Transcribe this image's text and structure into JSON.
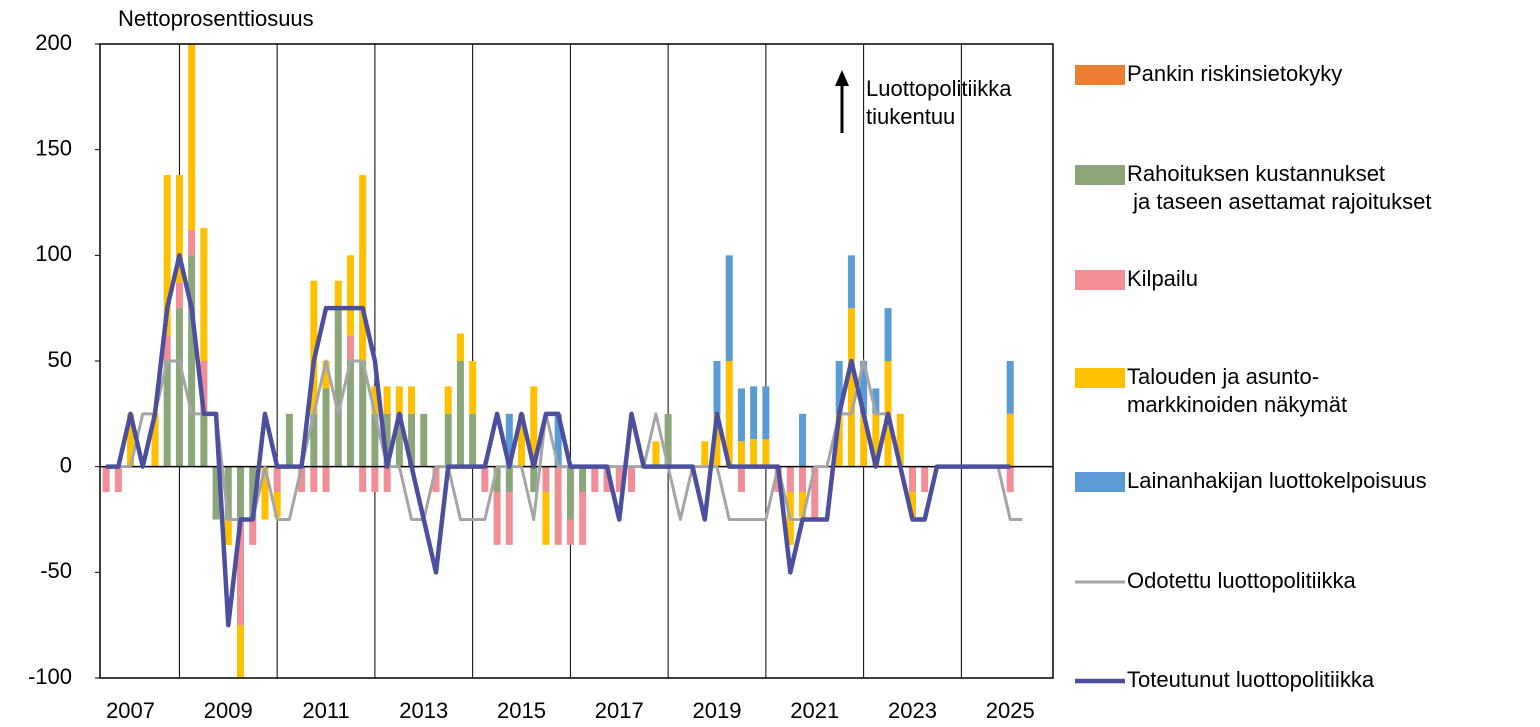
{
  "chart_data": {
    "type": "stacked-bar-line",
    "y_axis_label": "Nettoprosenttiosuus",
    "annotation": "Luottopolitiikka\ntiukentuu",
    "categories": [
      null,
      null,
      "2007",
      null,
      null,
      null,
      null,
      null,
      null,
      null,
      "2009",
      null,
      null,
      null,
      null,
      null,
      null,
      null,
      "2011",
      null,
      null,
      null,
      null,
      null,
      null,
      null,
      "2013",
      null,
      null,
      null,
      null,
      null,
      null,
      null,
      "2015",
      null,
      null,
      null,
      null,
      null,
      null,
      null,
      "2017",
      null,
      null,
      null,
      null,
      null,
      null,
      null,
      "2019",
      null,
      null,
      null,
      null,
      null,
      null,
      null,
      "2021",
      null,
      null,
      null,
      null,
      null,
      null,
      null,
      "2023",
      null,
      null,
      null,
      null,
      null,
      null,
      null,
      "2025",
      null,
      null,
      null
    ],
    "ylim": [
      -100,
      200
    ],
    "yticks": [
      -100,
      -50,
      0,
      50,
      100,
      150,
      200
    ],
    "vertical_grid": true,
    "series": [
      {
        "name": "Pankin riskinsietokyky",
        "color": "#ED7D31",
        "kind": "bar",
        "values": [
          0,
          0,
          0,
          0,
          0,
          0,
          0,
          0,
          0,
          0,
          0,
          0,
          0,
          0,
          0,
          0,
          0,
          0,
          0,
          0,
          0,
          0,
          0,
          0,
          0,
          0,
          0,
          0,
          0,
          0,
          0,
          0,
          0,
          0,
          0,
          0,
          0,
          0,
          0,
          0,
          0,
          0,
          0,
          0,
          0,
          0,
          0,
          0,
          0,
          0,
          0,
          0,
          0,
          0,
          0,
          0,
          0,
          0,
          0,
          0,
          0,
          0,
          0,
          0,
          0,
          0,
          0,
          0,
          0,
          0,
          0,
          0,
          0,
          0,
          0,
          null,
          null,
          null
        ]
      },
      {
        "name": "Rahoituksen kustannukset\n ja taseen asettamat rajoitukset",
        "color": "#8BA77A",
        "kind": "bar",
        "values": [
          0,
          0,
          0,
          0,
          0,
          50,
          75,
          100,
          25,
          -25,
          -25,
          -25,
          -25,
          0,
          0,
          25,
          0,
          25,
          37,
          75,
          50,
          50,
          25,
          25,
          25,
          25,
          25,
          0,
          25,
          50,
          25,
          0,
          -12,
          -12,
          0,
          -12,
          0,
          0,
          -25,
          -12,
          0,
          0,
          0,
          0,
          0,
          0,
          25,
          0,
          0,
          0,
          0,
          0,
          0,
          0,
          0,
          0,
          0,
          0,
          0,
          0,
          0,
          0,
          0,
          0,
          0,
          0,
          0,
          0,
          0,
          0,
          0,
          0,
          0,
          0,
          0,
          null,
          null,
          null
        ]
      },
      {
        "name": "Kilpailu",
        "color": "#F28E96",
        "kind": "bar",
        "values": [
          -12,
          -12,
          0,
          0,
          0,
          12,
          12,
          12,
          25,
          0,
          0,
          -50,
          -12,
          0,
          -12,
          0,
          -12,
          -12,
          -12,
          0,
          12,
          -12,
          -12,
          -12,
          0,
          0,
          0,
          -12,
          0,
          0,
          0,
          -12,
          -25,
          -25,
          0,
          0,
          -12,
          -37,
          -12,
          -25,
          -12,
          -12,
          -12,
          -12,
          0,
          0,
          0,
          0,
          0,
          0,
          0,
          0,
          -12,
          0,
          0,
          -12,
          -12,
          -12,
          -25,
          0,
          0,
          0,
          0,
          0,
          0,
          0,
          -12,
          -12,
          0,
          0,
          0,
          0,
          0,
          0,
          -12,
          null,
          null,
          null
        ]
      },
      {
        "name": "Talouden ja asunto-\nmarkkinoiden näkymät",
        "color": "#FFC000",
        "kind": "bar",
        "values": [
          0,
          0,
          25,
          0,
          25,
          76,
          51,
          88,
          63,
          0,
          -12,
          -25,
          0,
          -25,
          -12,
          0,
          0,
          63,
          13,
          13,
          38,
          88,
          13,
          13,
          13,
          13,
          0,
          0,
          13,
          13,
          25,
          0,
          0,
          0,
          25,
          38,
          -25,
          0,
          0,
          0,
          0,
          0,
          0,
          0,
          0,
          12,
          0,
          0,
          0,
          12,
          25,
          50,
          12,
          13,
          13,
          0,
          -25,
          -12,
          0,
          0,
          25,
          75,
          25,
          25,
          50,
          25,
          -12,
          0,
          0,
          0,
          0,
          0,
          0,
          0,
          25,
          null,
          null,
          null
        ]
      },
      {
        "name": "Lainanhakijan luottokelpoisuus",
        "color": "#5B9BD5",
        "kind": "bar",
        "values": [
          0,
          0,
          0,
          0,
          0,
          0,
          0,
          0,
          0,
          0,
          0,
          0,
          0,
          0,
          0,
          0,
          0,
          0,
          0,
          0,
          0,
          0,
          0,
          0,
          0,
          0,
          0,
          0,
          0,
          0,
          0,
          0,
          0,
          25,
          0,
          0,
          0,
          25,
          0,
          0,
          0,
          0,
          0,
          0,
          0,
          0,
          0,
          0,
          0,
          0,
          25,
          50,
          25,
          25,
          25,
          0,
          0,
          25,
          0,
          0,
          25,
          25,
          25,
          12,
          25,
          0,
          0,
          0,
          0,
          0,
          0,
          0,
          0,
          0,
          25,
          null,
          null,
          null
        ]
      },
      {
        "name": "Odotettu luottopolitiikka",
        "color": "#A5A5A5",
        "kind": "line",
        "width": 3,
        "values": [
          0,
          0,
          0,
          25,
          25,
          50,
          50,
          25,
          25,
          25,
          -25,
          -25,
          -25,
          0,
          -25,
          -25,
          0,
          25,
          50,
          25,
          50,
          50,
          25,
          0,
          0,
          -25,
          -25,
          0,
          0,
          -25,
          -25,
          -25,
          0,
          0,
          0,
          -25,
          25,
          0,
          0,
          0,
          0,
          0,
          0,
          0,
          0,
          25,
          0,
          -25,
          0,
          0,
          0,
          -25,
          -25,
          -25,
          -25,
          0,
          -25,
          -25,
          0,
          0,
          25,
          25,
          50,
          25,
          25,
          0,
          -25,
          -25,
          0,
          0,
          0,
          0,
          0,
          0,
          -25,
          -25,
          null,
          null
        ]
      },
      {
        "name": "Toteutunut luottopolitiikka",
        "color": "#4B4F9E",
        "kind": "line",
        "width": 4.5,
        "values": [
          0,
          0,
          25,
          0,
          25,
          75,
          100,
          75,
          25,
          25,
          -75,
          -25,
          -25,
          25,
          0,
          0,
          0,
          50,
          75,
          75,
          75,
          75,
          50,
          0,
          25,
          0,
          -25,
          -50,
          0,
          0,
          0,
          0,
          25,
          0,
          25,
          0,
          25,
          25,
          0,
          0,
          0,
          0,
          -25,
          25,
          0,
          0,
          0,
          0,
          0,
          -25,
          25,
          0,
          0,
          0,
          0,
          0,
          -50,
          -25,
          -25,
          -25,
          25,
          50,
          25,
          0,
          25,
          0,
          -25,
          -25,
          0,
          0,
          0,
          0,
          0,
          0,
          0,
          null,
          null,
          null
        ]
      }
    ]
  }
}
